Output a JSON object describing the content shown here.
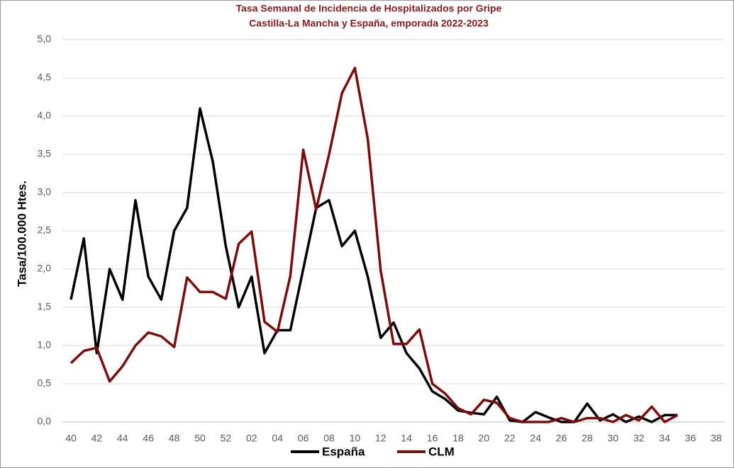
{
  "chart_data": {
    "type": "line",
    "title": "Tasa Semanal de Incidencia de Hospitalizados por Gripe",
    "subtitle": "Castilla-La Mancha y España, emporada 2022-2023",
    "y_label": "Tasa/100.000 Htes.",
    "categories": [
      "40",
      null,
      "42",
      null,
      "44",
      null,
      "46",
      null,
      "48",
      null,
      "50",
      null,
      "52",
      null,
      "02",
      null,
      "04",
      null,
      "06",
      null,
      "08",
      null,
      "10",
      null,
      "12",
      null,
      "14",
      null,
      "16",
      null,
      "18",
      null,
      "20",
      null,
      "22",
      null,
      "24",
      null,
      "26",
      null,
      "28",
      null,
      "30",
      null,
      "32",
      null,
      "34",
      null,
      "36",
      null,
      "38"
    ],
    "series": [
      {
        "name": "España",
        "color": "#000000",
        "values": [
          1.6,
          2.4,
          0.9,
          2.0,
          1.6,
          2.9,
          1.9,
          1.6,
          2.5,
          2.8,
          4.1,
          3.4,
          2.3,
          1.5,
          1.9,
          0.9,
          1.2,
          1.2,
          2.0,
          2.8,
          2.9,
          2.3,
          2.5,
          1.9,
          1.1,
          1.3,
          0.9,
          0.7,
          0.4,
          0.3,
          0.15,
          0.12,
          0.1,
          0.33,
          0.02,
          0.0,
          0.13,
          0.06,
          0.0,
          0.0,
          0.24,
          0.02,
          0.1,
          0.0,
          0.07,
          0.0,
          0.09,
          0.09,
          null,
          null,
          null
        ]
      },
      {
        "name": "CLM",
        "color": "#7b0c0c",
        "values": [
          0.77,
          0.93,
          0.97,
          0.53,
          0.73,
          1.0,
          1.17,
          1.12,
          0.98,
          1.89,
          1.7,
          1.7,
          1.61,
          2.33,
          2.49,
          1.31,
          1.18,
          1.91,
          3.56,
          2.78,
          3.5,
          4.3,
          4.63,
          3.7,
          1.98,
          1.02,
          1.02,
          1.21,
          0.5,
          0.37,
          0.18,
          0.1,
          0.29,
          0.25,
          0.05,
          0.0,
          0.0,
          0.0,
          0.05,
          0.0,
          0.05,
          0.05,
          0.0,
          0.09,
          0.02,
          0.2,
          0.0,
          0.09,
          null,
          null,
          null
        ]
      }
    ],
    "ylim": [
      0,
      5
    ],
    "yticks": [
      {
        "value": 0,
        "label": "0,0"
      },
      {
        "value": 0.5,
        "label": "0,5"
      },
      {
        "value": 1,
        "label": "1,0"
      },
      {
        "value": 1.5,
        "label": "1,5"
      },
      {
        "value": 2,
        "label": "2,0"
      },
      {
        "value": 2.5,
        "label": "2,5"
      },
      {
        "value": 3,
        "label": "3,0"
      },
      {
        "value": 3.5,
        "label": "3,5"
      },
      {
        "value": 4,
        "label": "4,0"
      },
      {
        "value": 4.5,
        "label": "4,5"
      },
      {
        "value": 5,
        "label": "5,0"
      }
    ],
    "grid": true,
    "legend": "bottom",
    "title_color": "#8b1a1a"
  }
}
